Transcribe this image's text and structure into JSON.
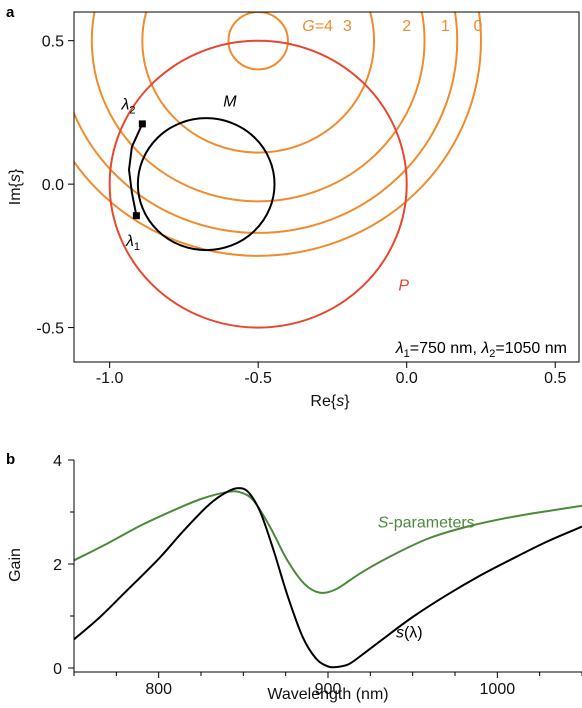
{
  "chart_data": [
    {
      "panel_label": "a",
      "type": "line",
      "xlabel_pre": "Re{",
      "xlabel_var": "s",
      "xlabel_post": "}",
      "ylabel_pre": "Im{",
      "ylabel_var": "s",
      "ylabel_post": "}",
      "xlim": [
        -1.12,
        0.58
      ],
      "ylim": [
        -0.62,
        0.6
      ],
      "xticks": [
        -1.0,
        -0.5,
        0.0,
        0.5
      ],
      "xtick_labels": [
        "-1.0",
        "-0.5",
        "0.0",
        "0.5"
      ],
      "yticks": [
        -0.5,
        0.0,
        0.5
      ],
      "ytick_labels": [
        "-0.5",
        "0.0",
        "0.5"
      ],
      "grid": false,
      "gain_color": "#f08c2e",
      "passive_color": "#e8472f",
      "m_color": "#000000",
      "gain_circles": [
        {
          "G": 4,
          "label": "G=4",
          "center": [
            -0.5,
            0.5
          ],
          "radius": 0.1
        },
        {
          "G": 3,
          "label": "3",
          "center": [
            -0.5,
            0.5
          ],
          "radius": 0.39
        },
        {
          "G": 2,
          "label": "2",
          "center": [
            -0.5,
            0.5
          ],
          "radius": 0.56
        },
        {
          "G": 1,
          "label": "1",
          "center": [
            -0.5,
            0.5
          ],
          "radius": 0.67
        },
        {
          "G": 0,
          "label": "0",
          "center": [
            -0.5,
            0.5
          ],
          "radius": 0.75
        }
      ],
      "passive_circle": {
        "label": "P",
        "center": [
          -0.5,
          0.0
        ],
        "radius": 0.5
      },
      "m_circle": {
        "label": "M",
        "center": [
          -0.675,
          0.0
        ],
        "radius": 0.23
      },
      "trajectory": {
        "x": [
          -0.91,
          -0.925,
          -0.935,
          -0.925,
          -0.89
        ],
        "y": [
          -0.11,
          -0.03,
          0.05,
          0.13,
          0.21
        ]
      },
      "endpoints": {
        "lambda1_label": "λ1",
        "lambda2_label": "λ2",
        "lambda1_point": [
          -0.91,
          -0.11
        ],
        "lambda2_point": [
          -0.89,
          0.21
        ]
      },
      "annotation": {
        "l1": "λ",
        "s1": "1",
        "t1": "=750 nm, ",
        "l2": "λ",
        "s2": "2",
        "t2": "=1050 nm"
      }
    },
    {
      "panel_label": "b",
      "type": "line",
      "xlabel": "Wavelength (nm)",
      "ylabel": "Gain",
      "xlim": [
        750,
        1050
      ],
      "ylim": [
        0,
        4
      ],
      "xticks": [
        800,
        900,
        1000
      ],
      "xtick_labels": [
        "800",
        "900",
        "1000"
      ],
      "yticks": [
        0,
        2,
        4
      ],
      "ytick_labels": [
        "0",
        "2",
        "4"
      ],
      "grid": false,
      "series": [
        {
          "name": "S-parameters",
          "name_var": "S",
          "name_rest": "-parameters",
          "color": "#4a8a3a",
          "x": [
            750,
            770,
            790,
            810,
            825,
            840,
            848,
            856,
            866,
            876,
            886,
            895,
            905,
            920,
            940,
            960,
            980,
            1000,
            1020,
            1040,
            1050
          ],
          "y": [
            2.07,
            2.4,
            2.75,
            3.05,
            3.25,
            3.38,
            3.38,
            3.22,
            2.7,
            2.07,
            1.62,
            1.45,
            1.52,
            1.84,
            2.2,
            2.5,
            2.7,
            2.85,
            2.97,
            3.07,
            3.12
          ]
        },
        {
          "name": "s(λ)",
          "name_var": "s",
          "name_rest": "(λ)",
          "color": "#000000",
          "x": [
            750,
            765,
            780,
            800,
            815,
            830,
            840,
            847,
            853,
            860,
            868,
            876,
            885,
            893,
            900,
            905,
            912,
            920,
            935,
            950,
            970,
            990,
            1010,
            1030,
            1050
          ],
          "y": [
            0.55,
            0.97,
            1.45,
            2.1,
            2.65,
            3.15,
            3.38,
            3.46,
            3.38,
            3.0,
            2.25,
            1.4,
            0.6,
            0.18,
            0.03,
            0.02,
            0.07,
            0.25,
            0.62,
            0.98,
            1.4,
            1.78,
            2.12,
            2.44,
            2.72
          ]
        }
      ]
    }
  ]
}
